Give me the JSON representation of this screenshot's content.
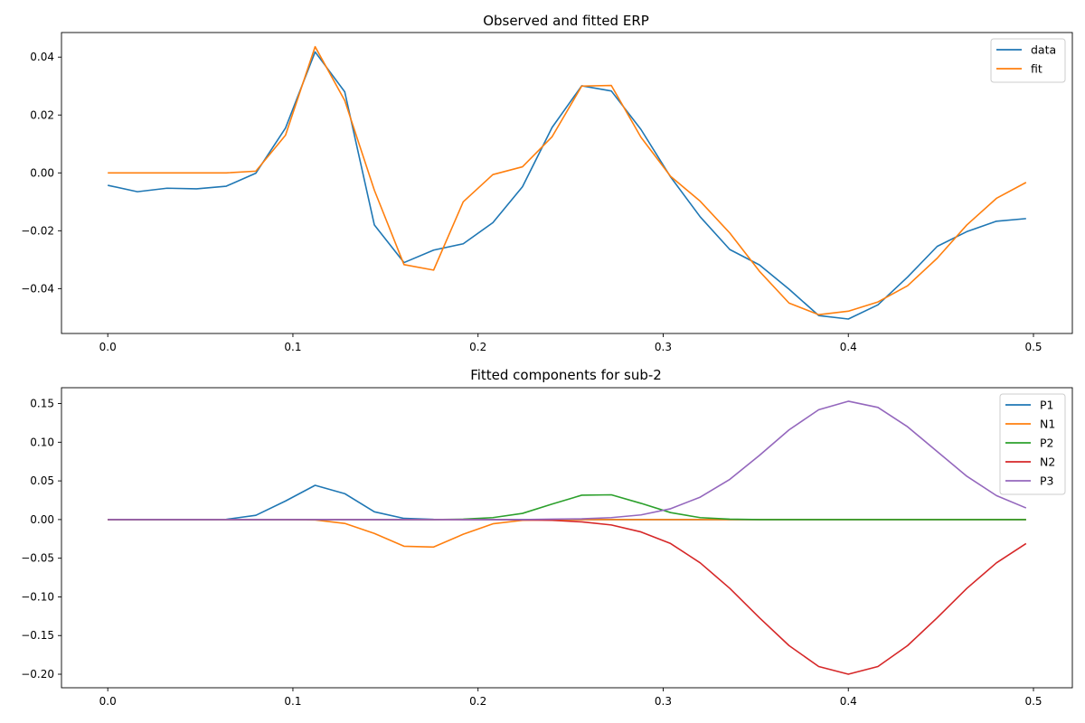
{
  "chart_data": [
    {
      "type": "line",
      "title": "Observed and fitted ERP",
      "xlabel": "",
      "ylabel": "",
      "xlim": [
        -0.025,
        0.521
      ],
      "ylim": [
        -0.0555,
        0.0485
      ],
      "x_ticks": [
        0.0,
        0.1,
        0.2,
        0.3,
        0.4,
        0.5
      ],
      "x_tick_labels": [
        "0.0",
        "0.1",
        "0.2",
        "0.3",
        "0.4",
        "0.5"
      ],
      "y_ticks": [
        -0.04,
        -0.02,
        0.0,
        0.02,
        0.04
      ],
      "y_tick_labels": [
        "−0.04",
        "−0.02",
        "0.00",
        "0.02",
        "0.04"
      ],
      "grid": false,
      "legend_position": "top-right",
      "x": [
        0.0,
        0.016,
        0.032,
        0.048,
        0.064,
        0.08,
        0.096,
        0.112,
        0.128,
        0.144,
        0.16,
        0.176,
        0.192,
        0.208,
        0.224,
        0.24,
        0.256,
        0.272,
        0.288,
        0.304,
        0.32,
        0.336,
        0.352,
        0.368,
        0.384,
        0.4,
        0.416,
        0.432,
        0.448,
        0.464,
        0.48,
        0.496
      ],
      "series": [
        {
          "name": "data",
          "color": "#1f77b4",
          "values": [
            -0.0043,
            -0.0065,
            -0.0053,
            -0.0055,
            -0.0046,
            -0.0001,
            0.0155,
            0.0418,
            0.028,
            -0.018,
            -0.031,
            -0.0267,
            -0.0245,
            -0.0172,
            -0.0048,
            0.0157,
            0.0301,
            0.0283,
            0.015,
            -0.0014,
            -0.0152,
            -0.0265,
            -0.0318,
            -0.0402,
            -0.0493,
            -0.0505,
            -0.0456,
            -0.036,
            -0.0254,
            -0.0203,
            -0.0167,
            -0.0158
          ]
        },
        {
          "name": "fit",
          "color": "#ff7f0e",
          "values": [
            0.0,
            0.0,
            0.0,
            0.0,
            0.0,
            0.0006,
            0.013,
            0.0436,
            0.025,
            -0.006,
            -0.0317,
            -0.0336,
            -0.01,
            -0.0006,
            0.0021,
            0.0125,
            0.03,
            0.0302,
            0.0123,
            -0.0012,
            -0.0098,
            -0.0208,
            -0.034,
            -0.045,
            -0.049,
            -0.0478,
            -0.0446,
            -0.039,
            -0.0295,
            -0.018,
            -0.0088,
            -0.0033
          ]
        }
      ]
    },
    {
      "type": "line",
      "title": "Fitted components for sub-2",
      "xlabel": "",
      "ylabel": "",
      "xlim": [
        -0.025,
        0.521
      ],
      "ylim": [
        -0.2175,
        0.1705
      ],
      "x_ticks": [
        0.0,
        0.1,
        0.2,
        0.3,
        0.4,
        0.5
      ],
      "x_tick_labels": [
        "0.0",
        "0.1",
        "0.2",
        "0.3",
        "0.4",
        "0.5"
      ],
      "y_ticks": [
        -0.2,
        -0.15,
        -0.1,
        -0.05,
        0.0,
        0.05,
        0.1,
        0.15
      ],
      "y_tick_labels": [
        "−0.20",
        "−0.15",
        "−0.10",
        "−0.05",
        "0.00",
        "0.05",
        "0.10",
        "0.15"
      ],
      "grid": false,
      "legend_position": "top-right",
      "x": [
        0.0,
        0.016,
        0.032,
        0.048,
        0.064,
        0.08,
        0.096,
        0.112,
        0.128,
        0.144,
        0.16,
        0.176,
        0.192,
        0.208,
        0.224,
        0.24,
        0.256,
        0.272,
        0.288,
        0.304,
        0.32,
        0.336,
        0.352,
        0.368,
        0.384,
        0.4,
        0.416,
        0.432,
        0.448,
        0.464,
        0.48,
        0.496
      ],
      "series": [
        {
          "name": "P1",
          "color": "#1f77b4",
          "values": [
            0.0,
            0.0,
            0.0,
            0.0,
            0.0003,
            0.0055,
            0.024,
            0.0443,
            0.0335,
            0.01,
            0.0015,
            0.0003,
            0.0,
            0.0,
            0.0,
            0.0,
            0.0,
            0.0,
            0.0,
            0.0,
            0.0,
            0.0,
            0.0,
            0.0,
            0.0,
            0.0,
            0.0,
            0.0,
            0.0,
            0.0,
            0.0,
            0.0
          ]
        },
        {
          "name": "N1",
          "color": "#ff7f0e",
          "values": [
            0.0,
            0.0,
            0.0,
            0.0,
            0.0,
            0.0,
            0.0,
            -0.0005,
            -0.005,
            -0.018,
            -0.0345,
            -0.0355,
            -0.019,
            -0.0055,
            -0.001,
            0.0,
            0.0,
            0.0,
            0.0,
            0.0,
            0.0,
            0.0,
            0.0,
            0.0,
            0.0,
            0.0,
            0.0,
            0.0,
            0.0,
            0.0,
            0.0,
            0.0
          ]
        },
        {
          "name": "P2",
          "color": "#2ca02c",
          "values": [
            0.0,
            0.0,
            0.0,
            0.0,
            0.0,
            0.0,
            0.0,
            0.0,
            0.0,
            0.0,
            0.0,
            0.0,
            0.0005,
            0.0025,
            0.008,
            0.02,
            0.0315,
            0.032,
            0.021,
            0.009,
            0.0025,
            0.0005,
            0.0,
            0.0,
            0.0,
            0.0,
            0.0,
            0.0,
            0.0,
            0.0,
            0.0,
            0.0
          ]
        },
        {
          "name": "N2",
          "color": "#d62728",
          "values": [
            0.0,
            0.0,
            0.0,
            0.0,
            0.0,
            0.0,
            0.0,
            0.0,
            0.0,
            0.0,
            0.0,
            0.0,
            0.0,
            0.0,
            -0.0005,
            -0.001,
            -0.003,
            -0.007,
            -0.016,
            -0.031,
            -0.056,
            -0.089,
            -0.127,
            -0.163,
            -0.19,
            -0.2,
            -0.19,
            -0.163,
            -0.127,
            -0.089,
            -0.056,
            -0.031
          ]
        },
        {
          "name": "P3",
          "color": "#9467bd",
          "values": [
            0.0,
            0.0,
            0.0,
            0.0,
            0.0,
            0.0,
            0.0,
            0.0,
            0.0,
            0.0,
            0.0,
            0.0,
            0.0,
            0.0,
            0.0,
            0.0005,
            0.001,
            0.0025,
            0.006,
            0.014,
            0.029,
            0.052,
            0.083,
            0.116,
            0.142,
            0.153,
            0.145,
            0.12,
            0.088,
            0.056,
            0.031,
            0.015
          ]
        }
      ]
    }
  ]
}
